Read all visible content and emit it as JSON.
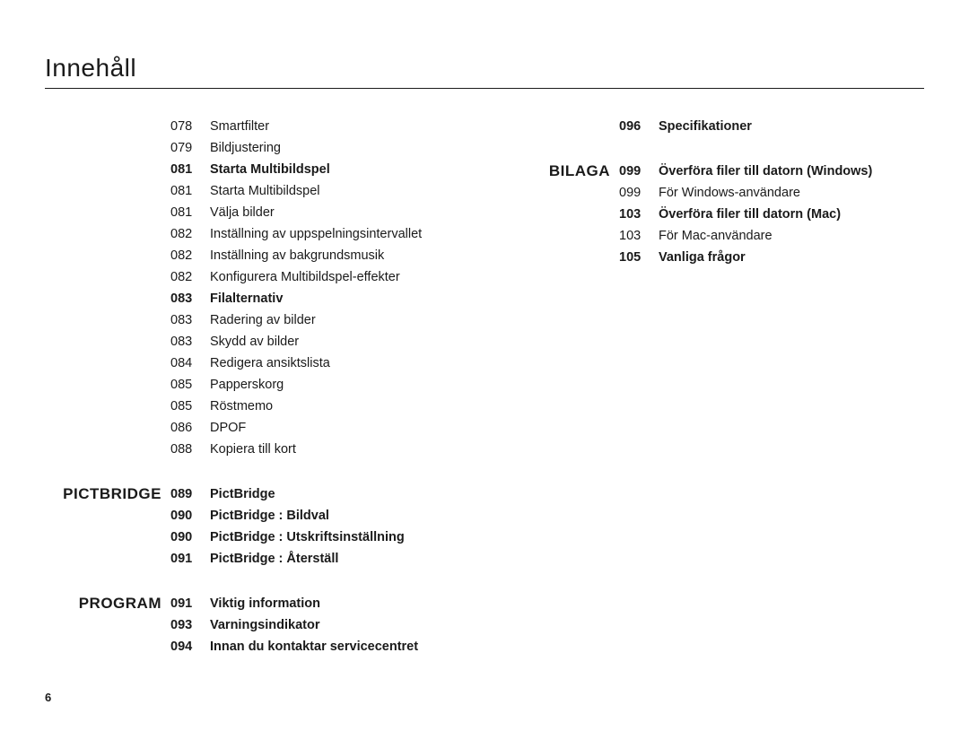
{
  "title": "Innehåll",
  "page_number": "6",
  "left_groups": [
    {
      "label": "",
      "rows": [
        {
          "page": "078",
          "text": "Smartfilter",
          "bold": false
        },
        {
          "page": "079",
          "text": "Bildjustering",
          "bold": false
        },
        {
          "page": "081",
          "text": "Starta Multibildspel",
          "bold": true
        },
        {
          "page": "081",
          "text": "Starta Multibildspel",
          "bold": false
        },
        {
          "page": "081",
          "text": "Välja bilder",
          "bold": false
        },
        {
          "page": "082",
          "text": "Inställning av uppspelningsintervallet",
          "bold": false
        },
        {
          "page": "082",
          "text": "Inställning av bakgrundsmusik",
          "bold": false
        },
        {
          "page": "082",
          "text": "Konfigurera Multibildspel-effekter",
          "bold": false
        },
        {
          "page": "083",
          "text": "Filalternativ",
          "bold": true
        },
        {
          "page": "083",
          "text": "Radering av bilder",
          "bold": false
        },
        {
          "page": "083",
          "text": "Skydd av bilder",
          "bold": false
        },
        {
          "page": "084",
          "text": "Redigera ansiktslista",
          "bold": false
        },
        {
          "page": "085",
          "text": "Papperskorg",
          "bold": false
        },
        {
          "page": "085",
          "text": "Röstmemo",
          "bold": false
        },
        {
          "page": "086",
          "text": "DPOF",
          "bold": false
        },
        {
          "page": "088",
          "text": "Kopiera till kort",
          "bold": false
        }
      ]
    },
    {
      "label": "PICTBRIDGE",
      "rows": [
        {
          "page": "089",
          "text": "PictBridge",
          "bold": true
        },
        {
          "page": "090",
          "text": "PictBridge : Bildval",
          "bold": true
        },
        {
          "page": "090",
          "text": "PictBridge : Utskriftsinställning",
          "bold": true
        },
        {
          "page": "091",
          "text": "PictBridge : Återställ",
          "bold": true
        }
      ]
    },
    {
      "label": "PROGRAM",
      "rows": [
        {
          "page": "091",
          "text": "Viktig information",
          "bold": true
        },
        {
          "page": "093",
          "text": "Varningsindikator",
          "bold": true
        },
        {
          "page": "094",
          "text": "Innan du kontaktar servicecentret",
          "bold": true
        }
      ]
    }
  ],
  "right_groups": [
    {
      "label": "",
      "rows": [
        {
          "page": "096",
          "text": "Specifikationer",
          "bold": true
        }
      ]
    },
    {
      "label": "BILAGA",
      "rows": [
        {
          "page": "099",
          "text": "Överföra filer till datorn (Windows)",
          "bold": true
        },
        {
          "page": "099",
          "text": "För Windows-användare",
          "bold": false
        },
        {
          "page": "103",
          "text": "Överföra filer till datorn (Mac)",
          "bold": true
        },
        {
          "page": "103",
          "text": "För Mac-användare",
          "bold": false
        },
        {
          "page": "105",
          "text": "Vanliga frågor",
          "bold": true
        }
      ]
    }
  ]
}
